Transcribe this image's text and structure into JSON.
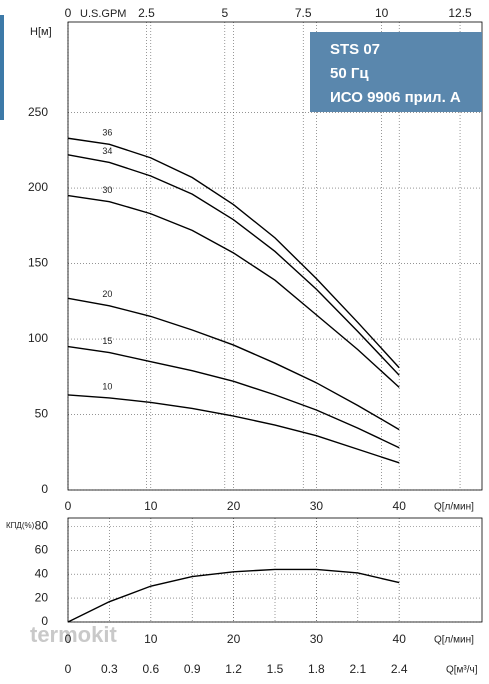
{
  "chart_data": [
    {
      "type": "line",
      "title": "H[м]",
      "x_label": "Q[л/мин]",
      "x": [
        0,
        5,
        10,
        15,
        20,
        25,
        30,
        35,
        40
      ],
      "series": [
        {
          "name": "36",
          "color": "#000000",
          "values": [
            233,
            229,
            220,
            207,
            189,
            167,
            140,
            111,
            81
          ]
        },
        {
          "name": "34",
          "color": "#000000",
          "values": [
            222,
            217,
            208,
            196,
            179,
            158,
            133,
            105,
            76
          ]
        },
        {
          "name": "30",
          "color": "#000000",
          "values": [
            195,
            191,
            183,
            172,
            157,
            139,
            116,
            93,
            68
          ]
        },
        {
          "name": "20",
          "color": "#000000",
          "values": [
            127,
            122,
            115,
            106,
            96,
            84,
            71,
            56,
            40
          ]
        },
        {
          "name": "15",
          "color": "#000000",
          "values": [
            95,
            91,
            85,
            79,
            72,
            63,
            53,
            41,
            28
          ]
        },
        {
          "name": "10",
          "color": "#000000",
          "values": [
            63,
            61,
            58,
            54,
            49,
            43,
            36,
            27,
            18
          ]
        }
      ],
      "xlim": [
        0,
        50
      ],
      "xticks": [
        0,
        10,
        20,
        30,
        40
      ],
      "ylim": [
        0,
        310
      ],
      "yticks": [
        0,
        50,
        100,
        150,
        200,
        250
      ],
      "x2_label": "U.S.GPM",
      "x2lim": [
        0,
        13.2
      ],
      "x2ticks": [
        0,
        2.5,
        5,
        7.5,
        10,
        12.5
      ],
      "grid": true
    },
    {
      "type": "line",
      "title": "КПД(%)",
      "x_label": "Q[л/мин]",
      "x": [
        0,
        5,
        10,
        15,
        20,
        25,
        30,
        35,
        40
      ],
      "series": [
        {
          "name": "КПД",
          "color": "#000000",
          "values": [
            0,
            17,
            30,
            38,
            42,
            44,
            44,
            41,
            33
          ]
        }
      ],
      "xlim": [
        0,
        50
      ],
      "xticks": [
        0,
        10,
        20,
        30,
        40
      ],
      "ylim": [
        0,
        87
      ],
      "yticks": [
        0,
        20,
        40,
        60,
        80
      ],
      "x2_label": "Q[м³/ч]",
      "x2lim": [
        0,
        3.0
      ],
      "x2ticks": [
        0,
        0.3,
        0.6,
        0.9,
        1.2,
        1.5,
        1.8,
        2.1,
        2.4
      ],
      "grid": true
    }
  ],
  "info_box": [
    "STS 07",
    "50 Гц",
    "ИСО 9906 прил. A"
  ],
  "watermark": "termokit"
}
